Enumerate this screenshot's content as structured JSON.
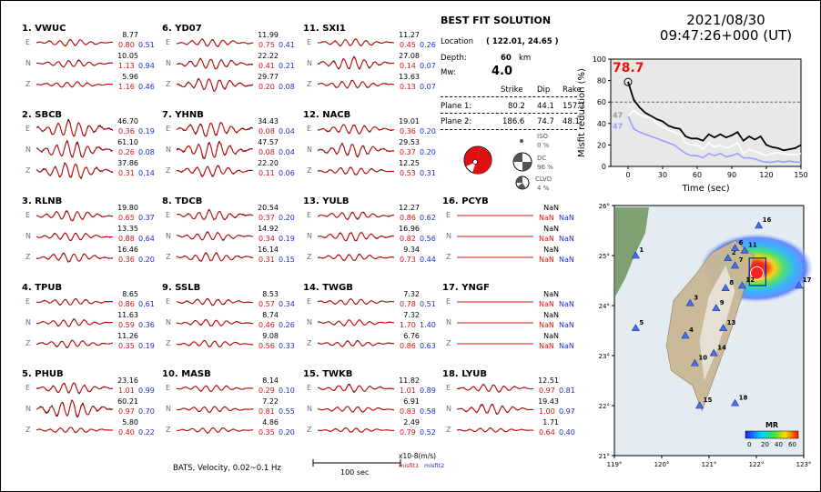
{
  "date": "2021/08/30",
  "time": "09:47:26+000  (UT)",
  "solution": {
    "title": "BEST FIT SOLUTION",
    "location_label": "Location",
    "location_value": "( 122.01, 24.65 )",
    "depth_label": "Depth:",
    "depth_value": "60",
    "depth_unit": "km",
    "mw_label": "Mw:",
    "mw_value": "4.0",
    "col_strike": "Strike",
    "col_dip": "Dip",
    "col_rake": "Rake",
    "plane1_label": "Plane 1:",
    "plane1": [
      "80.2",
      "44.1",
      "157.7"
    ],
    "plane2_label": "Plane 2:",
    "plane2": [
      "186.6",
      "74.7",
      "48.1"
    ],
    "iso_label": "ISO",
    "iso_value": "0 %",
    "dc_label": "DC",
    "dc_value": "96 %",
    "clvd_label": "CLVD",
    "clvd_value": "4 %"
  },
  "footer": {
    "caption": "BATS, Velocity, 0.02~0.1 Hz",
    "scale_label": "100 sec",
    "units": "x10-8(m/s)",
    "misfit1": "misfit1",
    "misfit2": "misfit2"
  },
  "components": [
    "E",
    "N",
    "Z"
  ],
  "stations": [
    {
      "label": "1.  VWUC",
      "rows": [
        [
          "8.77",
          "0.80",
          "0.51"
        ],
        [
          "10.05",
          "1.13",
          "0.94"
        ],
        [
          "5.96",
          "1.16",
          "0.46"
        ]
      ]
    },
    {
      "label": "2.  SBCB",
      "rows": [
        [
          "46.70",
          "0.36",
          "0.19"
        ],
        [
          "61.10",
          "0.26",
          "0.08"
        ],
        [
          "37.86",
          "0.31",
          "0.14"
        ]
      ]
    },
    {
      "label": "3.  RLNB",
      "rows": [
        [
          "19.80",
          "0.65",
          "0.37"
        ],
        [
          "13.35",
          "0.88",
          "0.64"
        ],
        [
          "16.46",
          "0.36",
          "0.20"
        ]
      ]
    },
    {
      "label": "4.  TPUB",
      "rows": [
        [
          "8.65",
          "0.86",
          "0.61"
        ],
        [
          "11.63",
          "0.59",
          "0.36"
        ],
        [
          "11.26",
          "0.35",
          "0.19"
        ]
      ]
    },
    {
      "label": "5.  PHUB",
      "rows": [
        [
          "23.16",
          "1.01",
          "0.99"
        ],
        [
          "60.21",
          "0.97",
          "0.70"
        ],
        [
          "5.80",
          "0.40",
          "0.22"
        ]
      ]
    },
    {
      "label": "6.  YD07",
      "rows": [
        [
          "11.99",
          "0.75",
          "0.41"
        ],
        [
          "22.22",
          "0.41",
          "0.21"
        ],
        [
          "29.77",
          "0.20",
          "0.08"
        ]
      ]
    },
    {
      "label": "7.  YHNB",
      "rows": [
        [
          "34.43",
          "0.08",
          "0.04"
        ],
        [
          "47.57",
          "0.08",
          "0.04"
        ],
        [
          "22.20",
          "0.11",
          "0.06"
        ]
      ]
    },
    {
      "label": "8.  TDCB",
      "rows": [
        [
          "20.54",
          "0.37",
          "0.20"
        ],
        [
          "14.92",
          "0.34",
          "0.19"
        ],
        [
          "16.14",
          "0.31",
          "0.15"
        ]
      ]
    },
    {
      "label": "9.  SSLB",
      "rows": [
        [
          "8.53",
          "0.57",
          "0.34"
        ],
        [
          "8.74",
          "0.46",
          "0.26"
        ],
        [
          "9.08",
          "0.56",
          "0.33"
        ]
      ]
    },
    {
      "label": "10. MASB",
      "rows": [
        [
          "8.14",
          "0.29",
          "0.10"
        ],
        [
          "7.22",
          "0.81",
          "0.55"
        ],
        [
          "4.86",
          "0.35",
          "0.20"
        ]
      ]
    },
    {
      "label": "11. SXI1",
      "rows": [
        [
          "11.27",
          "0.45",
          "0.26"
        ],
        [
          "27.08",
          "0.14",
          "0.07"
        ],
        [
          "13.63",
          "0.13",
          "0.07"
        ]
      ]
    },
    {
      "label": "12. NACB",
      "rows": [
        [
          "19.01",
          "0.36",
          "0.20"
        ],
        [
          "29.53",
          "0.37",
          "0.20"
        ],
        [
          "12.25",
          "0.53",
          "0.31"
        ]
      ]
    },
    {
      "label": "13. YULB",
      "rows": [
        [
          "12.27",
          "0.86",
          "0.62"
        ],
        [
          "16.96",
          "0.82",
          "0.56"
        ],
        [
          "9.34",
          "0.73",
          "0.44"
        ]
      ]
    },
    {
      "label": "14. TWGB",
      "rows": [
        [
          "7.32",
          "0.78",
          "0.51"
        ],
        [
          "7.32",
          "1.70",
          "1.40"
        ],
        [
          "6.76",
          "0.86",
          "0.63"
        ]
      ]
    },
    {
      "label": "15. TWKB",
      "rows": [
        [
          "11.82",
          "1.01",
          "0.89"
        ],
        [
          "6.91",
          "0.83",
          "0.58"
        ],
        [
          "2.49",
          "0.79",
          "0.52"
        ]
      ]
    },
    {
      "label": "16. PCYB",
      "rows": [
        [
          "NaN",
          "NaN",
          "NaN"
        ],
        [
          "NaN",
          "NaN",
          "NaN"
        ],
        [
          "NaN",
          "NaN",
          "NaN"
        ]
      ]
    },
    {
      "label": "17. YNGF",
      "rows": [
        [
          "NaN",
          "NaN",
          "NaN"
        ],
        [
          "NaN",
          "NaN",
          "NaN"
        ],
        [
          "NaN",
          "NaN",
          "NaN"
        ]
      ]
    },
    {
      "label": "18. LYUB",
      "rows": [
        [
          "12.51",
          "0.97",
          "0.81"
        ],
        [
          "19.43",
          "1.00",
          "0.97"
        ],
        [
          "1.71",
          "0.64",
          "0.40"
        ]
      ]
    }
  ],
  "chart_data": [
    {
      "type": "line",
      "title": "78.7",
      "xlabel": "Time (sec)",
      "ylabel": "Misfit reduction (%)",
      "xlim": [
        -15,
        150
      ],
      "ylim": [
        0,
        100
      ],
      "xticks": [
        "0",
        "30",
        "60",
        "90",
        "120",
        "150"
      ],
      "yticks": [
        "0",
        "20",
        "40",
        "60",
        "80",
        "100"
      ],
      "reference_line": 60,
      "peak_marker": {
        "x": 0,
        "y": 78.7
      },
      "side_labels": [
        "47",
        "47"
      ],
      "colors": {
        "black": "#000000",
        "white": "#ffffff",
        "blue": "#9aa0ff",
        "title": "#ee1010"
      },
      "x": [
        0,
        5,
        10,
        15,
        20,
        25,
        30,
        35,
        40,
        45,
        50,
        55,
        60,
        65,
        70,
        75,
        80,
        85,
        90,
        95,
        100,
        105,
        110,
        115,
        120,
        125,
        130,
        135,
        140,
        145,
        150
      ],
      "series": [
        {
          "values": [
            79,
            62,
            55,
            50,
            47,
            44,
            42,
            38,
            36,
            35,
            28,
            26,
            26,
            24,
            30,
            27,
            30,
            27,
            29,
            32,
            24,
            28,
            25,
            28,
            20,
            18,
            17,
            15,
            16,
            17,
            20
          ]
        },
        {
          "values": [
            47,
            52,
            48,
            46,
            45,
            40,
            37,
            34,
            32,
            30,
            22,
            20,
            20,
            16,
            22,
            18,
            20,
            17,
            19,
            22,
            12,
            16,
            14,
            12,
            10,
            12,
            13,
            12,
            11,
            11,
            12
          ]
        },
        {
          "values": [
            47,
            35,
            32,
            30,
            28,
            26,
            24,
            22,
            20,
            16,
            12,
            10,
            10,
            8,
            12,
            10,
            12,
            9,
            10,
            12,
            8,
            8,
            7,
            5,
            4,
            4,
            5,
            4,
            5,
            4,
            4
          ]
        }
      ]
    },
    {
      "type": "heatmap",
      "title": "MR",
      "xticks": [
        "119°",
        "120°",
        "121°",
        "122°",
        "123°"
      ],
      "yticks": [
        "21°",
        "22°",
        "23°",
        "24°",
        "25°",
        "26°"
      ],
      "xlim": [
        119,
        123
      ],
      "ylim": [
        21,
        26
      ],
      "colorbar_ticks": [
        "0",
        "20",
        "40",
        "60"
      ],
      "epicenter": {
        "lon": 122.01,
        "lat": 24.65
      },
      "stations": [
        {
          "id": "1",
          "lon": 119.45,
          "lat": 25.0
        },
        {
          "id": "2",
          "lon": 121.4,
          "lat": 24.95
        },
        {
          "id": "3",
          "lon": 120.6,
          "lat": 24.05
        },
        {
          "id": "4",
          "lon": 120.5,
          "lat": 23.4
        },
        {
          "id": "5",
          "lon": 119.45,
          "lat": 23.55
        },
        {
          "id": "6",
          "lon": 121.55,
          "lat": 25.15
        },
        {
          "id": "7",
          "lon": 121.55,
          "lat": 24.8
        },
        {
          "id": "8",
          "lon": 121.35,
          "lat": 24.35
        },
        {
          "id": "9",
          "lon": 121.15,
          "lat": 23.95
        },
        {
          "id": "10",
          "lon": 120.7,
          "lat": 22.85
        },
        {
          "id": "11",
          "lon": 121.75,
          "lat": 25.1
        },
        {
          "id": "12",
          "lon": 121.7,
          "lat": 24.4
        },
        {
          "id": "13",
          "lon": 121.3,
          "lat": 23.55
        },
        {
          "id": "14",
          "lon": 121.1,
          "lat": 23.05
        },
        {
          "id": "15",
          "lon": 120.8,
          "lat": 22.0
        },
        {
          "id": "16",
          "lon": 122.05,
          "lat": 25.6
        },
        {
          "id": "17",
          "lon": 122.9,
          "lat": 24.4
        },
        {
          "id": "18",
          "lon": 121.55,
          "lat": 22.05
        }
      ]
    }
  ]
}
